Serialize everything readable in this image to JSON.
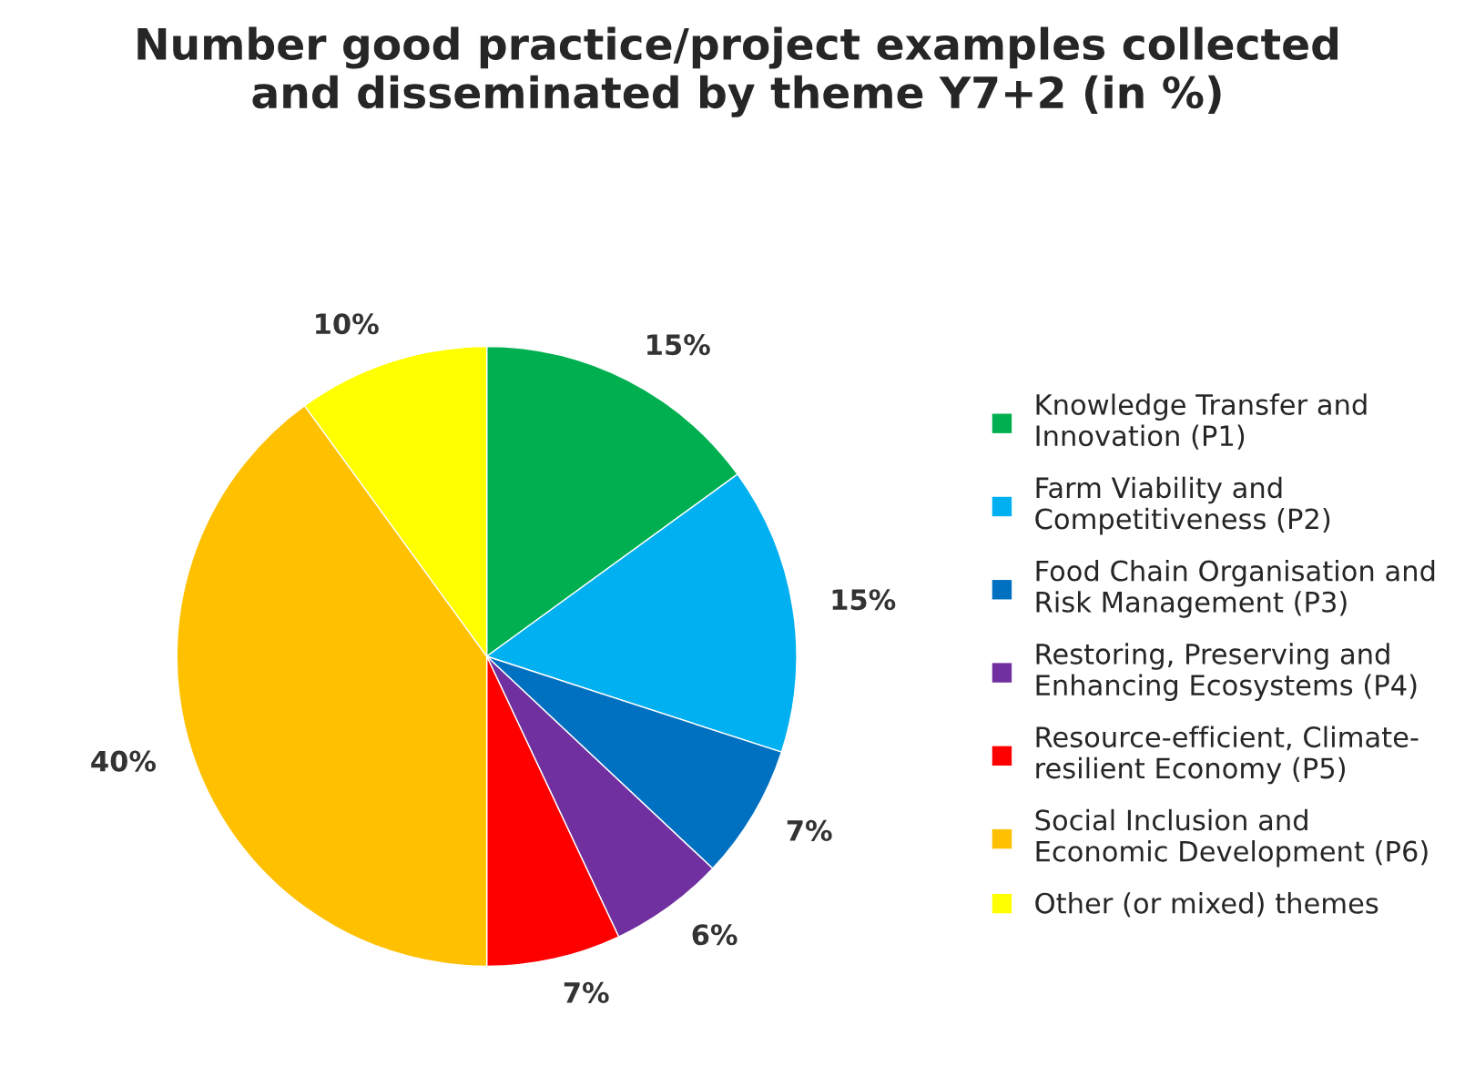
{
  "chart_data": {
    "type": "pie",
    "title": "Number good practice/project examples collected\nand disseminated by theme Y7+2 (in %)",
    "categories": [
      "Knowledge Transfer and\nInnovation (P1)",
      "Farm Viability and\nCompetitiveness (P2)",
      "Food Chain Organisation and\nRisk Management (P3)",
      "Restoring, Preserving and\nEnhancing Ecosystems (P4)",
      "Resource-efficient, Climate-\nresilient Economy (P5)",
      "Social Inclusion and\nEconomic Development (P6)",
      "Other (or mixed) themes"
    ],
    "values": [
      15,
      15,
      7,
      6,
      7,
      40,
      10
    ],
    "value_labels": [
      "15%",
      "15%",
      "7%",
      "6%",
      "7%",
      "40%",
      "10%"
    ],
    "colors": [
      "#00b050",
      "#00b0f0",
      "#0070c0",
      "#7030a0",
      "#ff0000",
      "#ffc000",
      "#ffff00"
    ],
    "legend": "right"
  }
}
